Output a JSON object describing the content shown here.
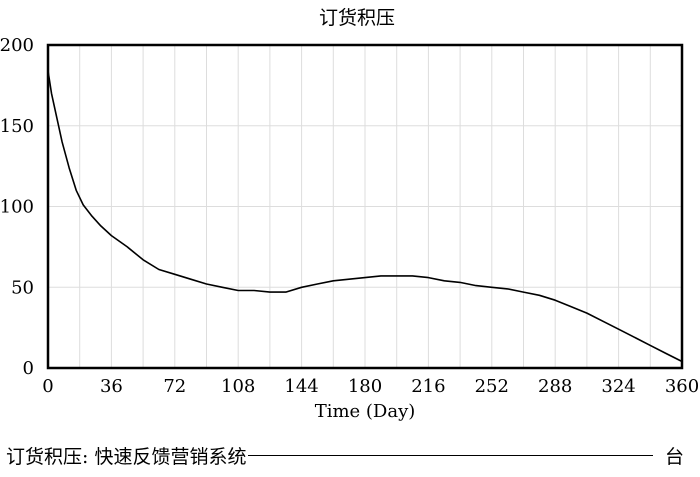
{
  "chart_data": {
    "type": "line",
    "title": "订货积压",
    "xlabel": "Time (Day)",
    "ylabel": "",
    "xlim": [
      0,
      360
    ],
    "ylim": [
      0,
      200
    ],
    "x_ticks": [
      0,
      36,
      72,
      108,
      144,
      180,
      216,
      252,
      288,
      324,
      360
    ],
    "y_ticks": [
      0,
      50,
      100,
      150,
      200
    ],
    "grid": true,
    "series": [
      {
        "name": "订货积压: 快速反馈营销系统",
        "unit": "台",
        "color": "#000000",
        "x": [
          0,
          2,
          5,
          8,
          12,
          16,
          20,
          25,
          30,
          36,
          45,
          54,
          63,
          72,
          81,
          90,
          99,
          108,
          117,
          126,
          130,
          135,
          144,
          153,
          162,
          171,
          180,
          189,
          198,
          207,
          216,
          225,
          234,
          243,
          252,
          261,
          270,
          279,
          288,
          297,
          306,
          315,
          324,
          333,
          342,
          351,
          360
        ],
        "y": [
          184,
          170,
          155,
          140,
          124,
          110,
          101,
          94,
          88,
          82,
          75,
          67,
          61,
          58,
          55,
          52,
          50,
          48,
          48,
          47,
          47,
          47,
          50,
          52,
          54,
          55,
          56,
          57,
          57,
          57,
          56,
          54,
          53,
          51,
          50,
          49,
          47,
          45,
          42,
          38,
          34,
          29,
          24,
          19,
          14,
          9,
          4
        ]
      }
    ]
  }
}
